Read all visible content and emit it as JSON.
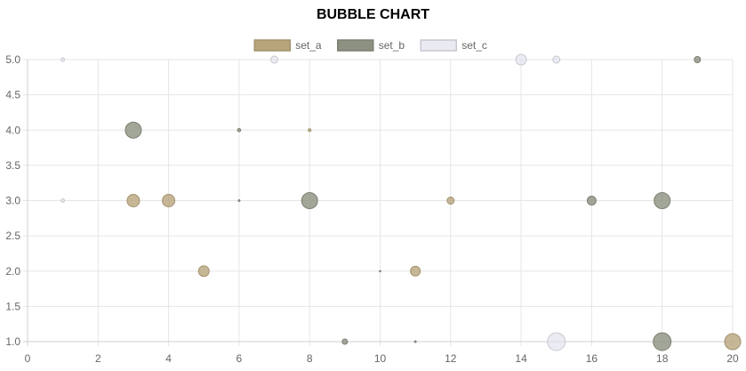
{
  "chart_data": {
    "type": "scatter",
    "subtype": "bubble",
    "title": "BUBBLE CHART",
    "xlabel": "",
    "ylabel": "",
    "xlim": [
      0,
      20
    ],
    "ylim": [
      1.0,
      5.0
    ],
    "x_ticks": [
      "0",
      "2",
      "4",
      "6",
      "8",
      "10",
      "12",
      "14",
      "16",
      "18",
      "20"
    ],
    "y_ticks": [
      "1.0",
      "1.5",
      "2.0",
      "2.5",
      "3.0",
      "3.5",
      "4.0",
      "4.5",
      "5.0"
    ],
    "grid": true,
    "legend_position": "top",
    "series": [
      {
        "name": "set_a",
        "color": "#b8a57c",
        "points": [
          {
            "x": 3,
            "y": 3,
            "r": 7
          },
          {
            "x": 4,
            "y": 3,
            "r": 7
          },
          {
            "x": 5,
            "y": 2,
            "r": 6
          },
          {
            "x": 8,
            "y": 4,
            "r": 1.5
          },
          {
            "x": 11,
            "y": 2,
            "r": 5.5
          },
          {
            "x": 12,
            "y": 3,
            "r": 4
          },
          {
            "x": 20,
            "y": 1,
            "r": 9
          }
        ]
      },
      {
        "name": "set_b",
        "color": "#8c9181",
        "points": [
          {
            "x": 3,
            "y": 4,
            "r": 9
          },
          {
            "x": 6,
            "y": 4,
            "r": 1.8
          },
          {
            "x": 6,
            "y": 3,
            "r": 1
          },
          {
            "x": 8,
            "y": 3,
            "r": 9
          },
          {
            "x": 9,
            "y": 1,
            "r": 3
          },
          {
            "x": 10,
            "y": 2,
            "r": 0.8
          },
          {
            "x": 11,
            "y": 1,
            "r": 1
          },
          {
            "x": 16,
            "y": 3,
            "r": 5
          },
          {
            "x": 18,
            "y": 3,
            "r": 9
          },
          {
            "x": 18,
            "y": 1,
            "r": 10
          },
          {
            "x": 19,
            "y": 5,
            "r": 3.5
          }
        ]
      },
      {
        "name": "set_c",
        "color": "#e3e3ee",
        "points": [
          {
            "x": 1,
            "y": 5,
            "r": 2
          },
          {
            "x": 1,
            "y": 3,
            "r": 2
          },
          {
            "x": 7,
            "y": 5,
            "r": 4
          },
          {
            "x": 14,
            "y": 5,
            "r": 6
          },
          {
            "x": 15,
            "y": 5,
            "r": 4
          },
          {
            "x": 15,
            "y": 1,
            "r": 10
          }
        ]
      }
    ]
  }
}
